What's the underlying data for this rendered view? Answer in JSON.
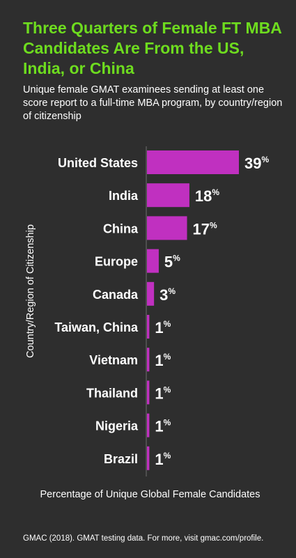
{
  "title": "Three Quarters of Female FT MBA Candidates Are From the US, India, or China",
  "subtitle": "Unique female GMAT examinees sending at least one score report to a full-time MBA program, by country/region of citizenship",
  "source": "GMAC (2018). GMAT testing data. For more, visit gmac.com/profile.",
  "colors": {
    "bar": "#c030c0",
    "title": "#6edc1f",
    "background": "#2e2e2e",
    "axis": "#6e6e6e"
  },
  "chart_data": {
    "type": "bar",
    "orientation": "horizontal",
    "categories": [
      "United States",
      "India",
      "China",
      "Europe",
      "Canada",
      "Taiwan, China",
      "Vietnam",
      "Thailand",
      "Nigeria",
      "Brazil"
    ],
    "values": [
      39,
      18,
      17,
      5,
      3,
      1,
      1,
      1,
      1,
      1
    ],
    "value_labels": [
      "39",
      "18",
      "17",
      "5",
      "3",
      "1",
      "1",
      "1",
      "1",
      "1"
    ],
    "value_suffix": "%",
    "ylabel": "Country/Region of Citizenship",
    "xlabel": "Percentage of Unique Global Female Candidates",
    "xlim": [
      0,
      39
    ],
    "grid": false
  }
}
